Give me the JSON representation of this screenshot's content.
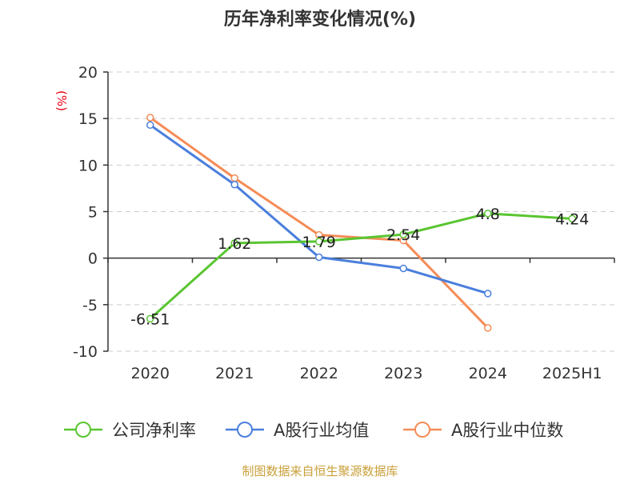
{
  "chart_data": {
    "type": "line",
    "title": "历年净利率变化情况(%)",
    "unit_label": "(%)",
    "categories": [
      "2020",
      "2021",
      "2022",
      "2023",
      "2024",
      "2025H1"
    ],
    "ylim": [
      -10,
      20
    ],
    "yticks": [
      -10,
      -5,
      0,
      5,
      10,
      15,
      20
    ],
    "grid": true,
    "legend_position": "bottom",
    "series": [
      {
        "name": "公司净利率",
        "color": "#5ac531",
        "values": [
          -6.51,
          1.62,
          1.79,
          2.54,
          4.8,
          4.24
        ],
        "labels": [
          "-6.51",
          "1.62",
          "1.79",
          "2.54",
          "4.8",
          "4.24"
        ]
      },
      {
        "name": "A股行业均值",
        "color": "#4a7fdc",
        "values": [
          14.3,
          7.9,
          0.1,
          -1.1,
          -3.8,
          null
        ]
      },
      {
        "name": "A股行业中位数",
        "color": "#f58c57",
        "values": [
          15.1,
          8.6,
          2.5,
          1.9,
          -7.5,
          null
        ]
      }
    ]
  },
  "source": "制图数据来自恒生聚源数据库"
}
